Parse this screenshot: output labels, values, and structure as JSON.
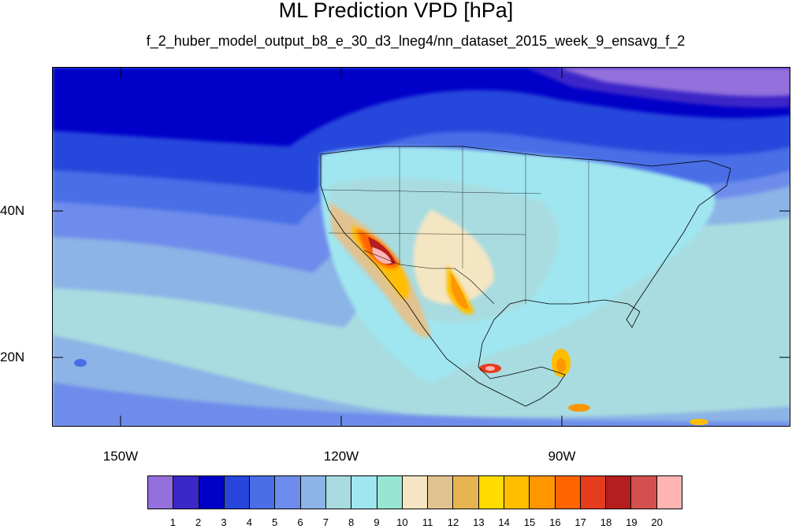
{
  "title": "ML Prediction VPD [hPa]",
  "subtitle": "f_2_huber_model_output_b8_e_30_d3_lneg4/nn_dataset_2015_week_9_ensavg_f_2",
  "lat_labels": [
    "40N",
    "20N"
  ],
  "lon_labels": [
    "150W",
    "120W",
    "90W"
  ],
  "colorbar": {
    "colors": [
      "#9370db",
      "#3c28c8",
      "#0000c8",
      "#2846dc",
      "#4a6ee6",
      "#6e8ceb",
      "#8cb4e6",
      "#a8dce0",
      "#a0e6f0",
      "#96e6d2",
      "#f5e6c3",
      "#e1c391",
      "#e6b450",
      "#ffdc00",
      "#ffbe00",
      "#ff9600",
      "#ff6400",
      "#e63c1e",
      "#b41e1e",
      "#d25050",
      "#ffb4b4"
    ],
    "labels": [
      "1",
      "2",
      "3",
      "4",
      "5",
      "6",
      "7",
      "8",
      "9",
      "10",
      "11",
      "12",
      "13",
      "14",
      "15",
      "16",
      "17",
      "18",
      "19",
      "20"
    ]
  }
}
